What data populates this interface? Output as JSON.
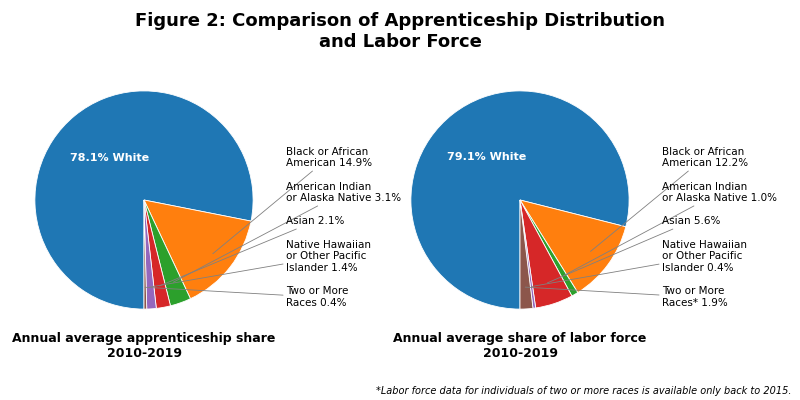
{
  "title": "Figure 2: Comparison of Apprenticeship Distribution\nand Labor Force",
  "annotations": [
    "*Labor force data for individuals of two or more races is available only back to 2015."
  ],
  "chart_data": [
    {
      "type": "pie",
      "subtitle": "Annual average apprenticeship share\n2010-2019",
      "categories": [
        "78.1% White",
        "Black or African\nAmerican 14.9%",
        "American Indian\nor Alaska Native 3.1%",
        "Asian 2.1%",
        "Native Hawaiian\nor Other Pacific\nIslander 1.4%",
        "Two or More\nRaces 0.4%"
      ],
      "values": [
        78.1,
        14.9,
        3.1,
        2.1,
        1.4,
        0.4
      ]
    },
    {
      "type": "pie",
      "subtitle": "Annual average share of labor force\n2010-2019",
      "categories": [
        "79.1% White",
        "Black or African\nAmerican 12.2%",
        "American Indian\nor Alaska Native 1.0%",
        "Asian 5.6%",
        "Native Hawaiian\nor Other Pacific\nIslander 0.4%",
        "Two or More\nRaces* 1.9%"
      ],
      "values": [
        79.1,
        12.2,
        1.0,
        5.6,
        0.4,
        1.9
      ]
    }
  ]
}
